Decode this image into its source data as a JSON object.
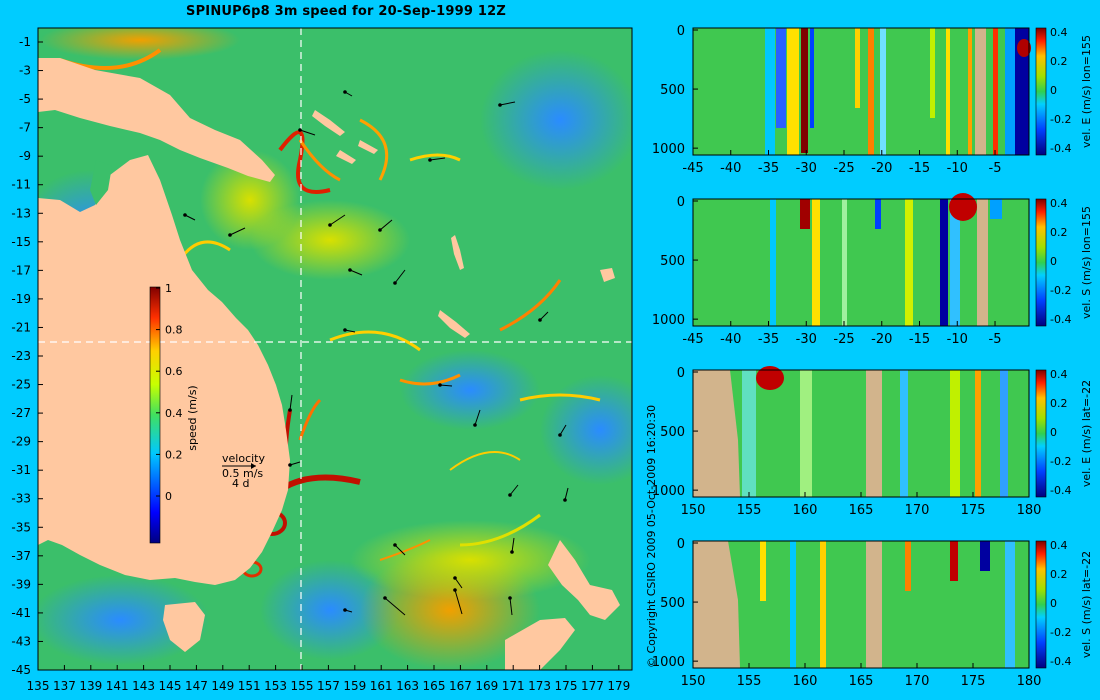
{
  "title": "SPINUP6p8 3m speed for 20-Sep-1999 12Z",
  "copyright": "© Copyright CSIRO 2009   05-Oct-2009 16:20:30",
  "colors": {
    "background": "#00ccff",
    "land": "#ffc8a0",
    "section_land": "#d2b48c"
  },
  "map": {
    "x_ticks": [
      "135",
      "137",
      "139",
      "141",
      "143",
      "145",
      "147",
      "149",
      "151",
      "153",
      "155",
      "157",
      "159",
      "161",
      "163",
      "165",
      "167",
      "169",
      "171",
      "173",
      "175",
      "177",
      "179"
    ],
    "y_ticks": [
      "-1",
      "-3",
      "-5",
      "-7",
      "-9",
      "-11",
      "-13",
      "-15",
      "-17",
      "-19",
      "-21",
      "-23",
      "-25",
      "-27",
      "-29",
      "-31",
      "-33",
      "-35",
      "-37",
      "-39",
      "-41",
      "-43",
      "-45"
    ],
    "section_lon": 155,
    "section_lat": -22,
    "colorbar": {
      "label": "speed (m/s)",
      "ticks": [
        "1",
        "0.8",
        "0.6",
        "0.4",
        "0.2",
        "0"
      ]
    },
    "velocity_key": {
      "title": "velocity",
      "speed": "0.5 m/s",
      "duration": "4 d"
    }
  },
  "panels": [
    {
      "colorbar_label": "vel. E (m/s) lon=155",
      "x_ticks": [
        "-45",
        "-40",
        "-35",
        "-30",
        "-25",
        "-20",
        "-15",
        "-10",
        "-5"
      ],
      "y_ticks": [
        "0",
        "500",
        "1000"
      ],
      "cb_ticks": [
        "0.4",
        "0.2",
        "0",
        "-0.2",
        "-0.4"
      ]
    },
    {
      "colorbar_label": "vel. S (m/s) lon=155",
      "x_ticks": [
        "-45",
        "-40",
        "-35",
        "-30",
        "-25",
        "-20",
        "-15",
        "-10",
        "-5"
      ],
      "y_ticks": [
        "0",
        "500",
        "1000"
      ],
      "cb_ticks": [
        "0.4",
        "0.2",
        "0",
        "-0.2",
        "-0.4"
      ]
    },
    {
      "colorbar_label": "vel. E (m/s) lat=-22",
      "x_ticks": [
        "150",
        "155",
        "160",
        "165",
        "170",
        "175",
        "180"
      ],
      "y_ticks": [
        "0",
        "500",
        "1000"
      ],
      "cb_ticks": [
        "0.4",
        "0.2",
        "0",
        "-0.2",
        "-0.4"
      ]
    },
    {
      "colorbar_label": "vel. S (m/s) lat=-22",
      "x_ticks": [
        "150",
        "155",
        "160",
        "165",
        "170",
        "175",
        "180"
      ],
      "y_ticks": [
        "0",
        "500",
        "1000"
      ],
      "cb_ticks": [
        "0.4",
        "0.2",
        "0",
        "-0.2",
        "-0.4"
      ]
    }
  ]
}
